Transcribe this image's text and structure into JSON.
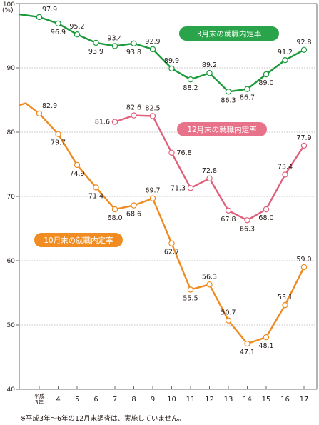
{
  "chart_data": {
    "type": "line",
    "y_unit": "(%)",
    "ylim": [
      40,
      100
    ],
    "y_ticks": [
      40,
      50,
      60,
      70,
      80,
      90,
      100
    ],
    "grid": true,
    "x_tick_labels": [
      "平成\n3年",
      "4",
      "5",
      "6",
      "7",
      "8",
      "9",
      "10",
      "11",
      "12",
      "13",
      "14",
      "15",
      "16",
      "17"
    ],
    "series": [
      {
        "name": "3月末の就職内定率",
        "color": "#1a9a3a",
        "badge_color": "#2aa44a",
        "x": [
          3,
          4,
          5,
          6,
          7,
          8,
          9,
          10,
          11,
          12,
          13,
          14,
          15,
          16,
          17
        ],
        "values": [
          97.9,
          96.9,
          95.2,
          93.9,
          93.4,
          93.8,
          92.9,
          89.9,
          88.2,
          89.2,
          86.3,
          86.7,
          89.0,
          91.2,
          92.8
        ],
        "labels": [
          "97.9",
          "96.9",
          "95.2",
          "93.9",
          "93.4",
          "93.8",
          "92.9",
          "89.9",
          "88.2",
          "89.2",
          "86.3",
          "86.7",
          "89.0",
          "91.2",
          "92.8"
        ]
      },
      {
        "name": "12月末の就職内定率",
        "color": "#e0607a",
        "badge_color": "#e8728a",
        "x": [
          7,
          8,
          9,
          10,
          11,
          12,
          13,
          14,
          15,
          16,
          17
        ],
        "values": [
          81.6,
          82.6,
          82.5,
          76.8,
          71.3,
          72.8,
          67.8,
          66.3,
          68.0,
          73.4,
          77.9
        ],
        "labels": [
          "81.6",
          "82.6",
          "82.5",
          "76.8",
          "71.3",
          "72.8",
          "67.8",
          "66.3",
          "68.0",
          "73.4",
          "77.9"
        ]
      },
      {
        "name": "10月末の就職内定率",
        "color": "#ee8a1e",
        "badge_color": "#f08c22",
        "x": [
          3,
          4,
          5,
          6,
          7,
          8,
          9,
          10,
          11,
          12,
          13,
          14,
          15,
          16,
          17
        ],
        "values": [
          82.9,
          79.7,
          74.9,
          71.4,
          68.0,
          68.6,
          69.7,
          62.7,
          55.5,
          56.3,
          50.7,
          47.1,
          48.1,
          53.1,
          59.0
        ],
        "labels": [
          "82.9",
          "79.7",
          "74.9",
          "71.4",
          "68.0",
          "68.6",
          "69.7",
          "62.7",
          "55.5",
          "56.3",
          "50.7",
          "47.1",
          "48.1",
          "53.1",
          "59.0"
        ]
      }
    ]
  },
  "footnote": "※平成3年～6年の12月末調査は、実施していません。"
}
